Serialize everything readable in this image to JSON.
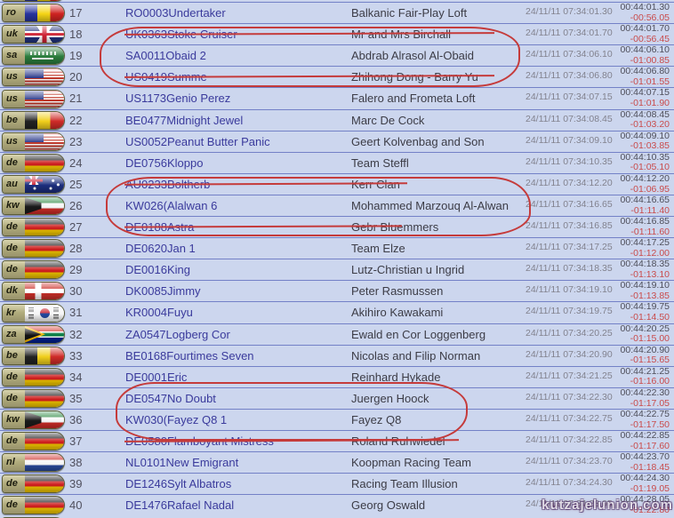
{
  "watermark": "kutzajelunion.com",
  "colors": {
    "row_background": "#ccd6ee",
    "row_separator": "#7381c7",
    "ring_text": "#3a3a9c",
    "owner_text": "#3c3c46",
    "timestamp_text": "#82828e",
    "elapsed_text": "#4e4e5a",
    "diff_text": "#c94b4b",
    "annotation_red": "#c53b3b",
    "country_tab": "#b2ad7e"
  },
  "table": {
    "rows": [
      {
        "rank": "17",
        "country": "ro",
        "ring": "RO0003",
        "pigeon": "Undertaker",
        "owner": "Balkanic Fair-Play Loft",
        "clocked": "24/11/11 07:34:01.30",
        "elapsed": "00:44:01.30",
        "diff": "-00:56.05",
        "struck": false
      },
      {
        "rank": "18",
        "country": "uk",
        "ring": "UK0363",
        "pigeon": "Stoke Cruiser",
        "owner": "Mr and Mrs Birchall",
        "clocked": "24/11/11 07:34:01.70",
        "elapsed": "00:44:01.70",
        "diff": "-00:56.45",
        "struck": true
      },
      {
        "rank": "19",
        "country": "sa",
        "ring": "SA0011",
        "pigeon": "Obaid 2",
        "owner": "Abdrab Alrasol Al-Obaid",
        "clocked": "24/11/11 07:34:06.10",
        "elapsed": "00:44:06.10",
        "diff": "-01:00.85",
        "struck": false
      },
      {
        "rank": "20",
        "country": "us",
        "ring": "US0419",
        "pigeon": "Summe",
        "owner": "Zhihong Dong - Barry Yu",
        "clocked": "24/11/11 07:34:06.80",
        "elapsed": "00:44:06.80",
        "diff": "-01:01.55",
        "struck": true
      },
      {
        "rank": "21",
        "country": "us",
        "ring": "US1173",
        "pigeon": "Genio Perez",
        "owner": "Falero and Frometa Loft",
        "clocked": "24/11/11 07:34:07.15",
        "elapsed": "00:44:07.15",
        "diff": "-01:01.90",
        "struck": false
      },
      {
        "rank": "22",
        "country": "be",
        "ring": "BE0477",
        "pigeon": "Midnight Jewel",
        "owner": "Marc De Cock",
        "clocked": "24/11/11 07:34:08.45",
        "elapsed": "00:44:08.45",
        "diff": "-01:03.20",
        "struck": false
      },
      {
        "rank": "23",
        "country": "us",
        "ring": "US0052",
        "pigeon": "Peanut Butter Panic",
        "owner": "Geert Kolvenbag and Son",
        "clocked": "24/11/11 07:34:09.10",
        "elapsed": "00:44:09.10",
        "diff": "-01:03.85",
        "struck": false
      },
      {
        "rank": "24",
        "country": "de",
        "ring": "DE0756",
        "pigeon": "Kloppo",
        "owner": "Team Steffl",
        "clocked": "24/11/11 07:34:10.35",
        "elapsed": "00:44:10.35",
        "diff": "-01:05.10",
        "struck": false
      },
      {
        "rank": "25",
        "country": "au",
        "ring": "AU0233",
        "pigeon": "Boltherb",
        "owner": "Kerr Clan",
        "clocked": "24/11/11 07:34:12.20",
        "elapsed": "00:44:12.20",
        "diff": "-01:06.95",
        "struck": true
      },
      {
        "rank": "26",
        "country": "kw",
        "ring": "KW026(",
        "pigeon": "Alalwan 6",
        "owner": "Mohammed Marzouq Al-Alwan",
        "clocked": "24/11/11 07:34:16.65",
        "elapsed": "00:44:16.65",
        "diff": "-01:11.40",
        "struck": false
      },
      {
        "rank": "27",
        "country": "de",
        "ring": "DE0188",
        "pigeon": "Astra",
        "owner": "Gebr Bluemmers",
        "clocked": "24/11/11 07:34:16.85",
        "elapsed": "00:44:16.85",
        "diff": "-01:11.60",
        "struck": true
      },
      {
        "rank": "28",
        "country": "de",
        "ring": "DE0620",
        "pigeon": "Jan 1",
        "owner": "Team Elze",
        "clocked": "24/11/11 07:34:17.25",
        "elapsed": "00:44:17.25",
        "diff": "-01:12.00",
        "struck": false
      },
      {
        "rank": "29",
        "country": "de",
        "ring": "DE0016",
        "pigeon": "King",
        "owner": "Lutz-Christian u Ingrid",
        "clocked": "24/11/11 07:34:18.35",
        "elapsed": "00:44:18.35",
        "diff": "-01:13.10",
        "struck": false
      },
      {
        "rank": "30",
        "country": "dk",
        "ring": "DK0085",
        "pigeon": "Jimmy",
        "owner": "Peter Rasmussen",
        "clocked": "24/11/11 07:34:19.10",
        "elapsed": "00:44:19.10",
        "diff": "-01:13.85",
        "struck": false
      },
      {
        "rank": "31",
        "country": "kr",
        "ring": "KR0004",
        "pigeon": "Fuyu",
        "owner": "Akihiro Kawakami",
        "clocked": "24/11/11 07:34:19.75",
        "elapsed": "00:44:19.75",
        "diff": "-01:14.50",
        "struck": false
      },
      {
        "rank": "32",
        "country": "za",
        "ring": "ZA0547",
        "pigeon": "Logberg Cor",
        "owner": "Ewald en Cor Loggenberg",
        "clocked": "24/11/11 07:34:20.25",
        "elapsed": "00:44:20.25",
        "diff": "-01:15.00",
        "struck": false
      },
      {
        "rank": "33",
        "country": "be",
        "ring": "BE0168",
        "pigeon": "Fourtimes Seven",
        "owner": "Nicolas and Filip Norman",
        "clocked": "24/11/11 07:34:20.90",
        "elapsed": "00:44:20.90",
        "diff": "-01:15.65",
        "struck": false
      },
      {
        "rank": "34",
        "country": "de",
        "ring": "DE0001",
        "pigeon": "Eric",
        "owner": "Reinhard Hykade",
        "clocked": "24/11/11 07:34:21.25",
        "elapsed": "00:44:21.25",
        "diff": "-01:16.00",
        "struck": false
      },
      {
        "rank": "35",
        "country": "de",
        "ring": "DE0547",
        "pigeon": "No Doubt",
        "owner": "Juergen Hoock",
        "clocked": "24/11/11 07:34:22.30",
        "elapsed": "00:44:22.30",
        "diff": "-01:17.05",
        "struck": false
      },
      {
        "rank": "36",
        "country": "kw",
        "ring": "KW030(",
        "pigeon": "Fayez Q8 1",
        "owner": "Fayez Q8",
        "clocked": "24/11/11 07:34:22.75",
        "elapsed": "00:44:22.75",
        "diff": "-01:17.50",
        "struck": false
      },
      {
        "rank": "37",
        "country": "de",
        "ring": "DE0580",
        "pigeon": "Flamboyant Mistress",
        "owner": "Roland Ruhwiedel",
        "clocked": "24/11/11 07:34:22.85",
        "elapsed": "00:44:22.85",
        "diff": "-01:17.60",
        "struck": true
      },
      {
        "rank": "38",
        "country": "nl",
        "ring": "NL0101",
        "pigeon": "New Emigrant",
        "owner": "Koopman Racing Team",
        "clocked": "24/11/11 07:34:23.70",
        "elapsed": "00:44:23.70",
        "diff": "-01:18.45",
        "struck": false
      },
      {
        "rank": "39",
        "country": "de",
        "ring": "DE1246",
        "pigeon": "Sylt Albatros",
        "owner": "Racing Team Illusion",
        "clocked": "24/11/11 07:34:24.30",
        "elapsed": "00:44:24.30",
        "diff": "-01:19.05",
        "struck": false
      },
      {
        "rank": "40",
        "country": "de",
        "ring": "DE1476",
        "pigeon": "Rafael Nadal",
        "owner": "Georg Oswald",
        "clocked": "24/11/11 07:34:28.05",
        "elapsed": "00:44:28.05",
        "diff": "-01:22.80",
        "struck": false
      }
    ]
  },
  "annotations": {
    "circled_ranks": [
      [
        18,
        19,
        20
      ],
      [
        25,
        26,
        27
      ],
      [
        35,
        36,
        37
      ]
    ],
    "struck_ranks": [
      18,
      20,
      25,
      27,
      37
    ]
  },
  "partial_rows": {
    "top_country": "ro",
    "bottom_country": "de"
  }
}
